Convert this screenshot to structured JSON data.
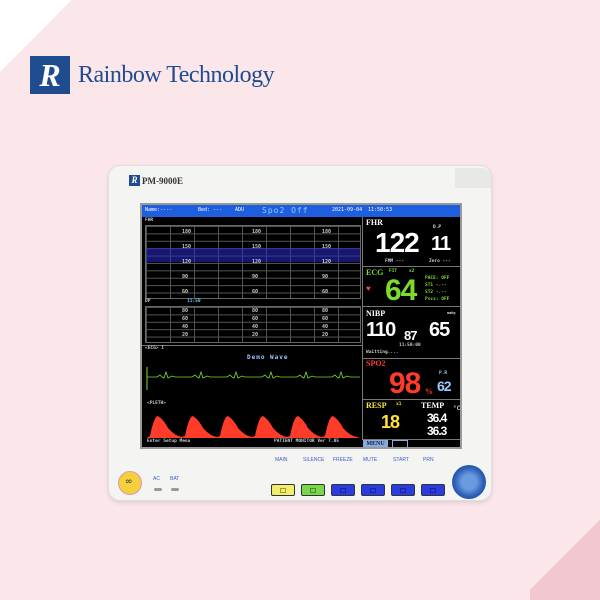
{
  "brand": {
    "logo_letter": "R",
    "name": "Rainbow Technology"
  },
  "device": {
    "model": "PM-9000E"
  },
  "screen": {
    "header": {
      "name": "Name:----",
      "bed": "Bed: ---",
      "mode": "ADU",
      "alert": "Spo2 Off",
      "date": "2021-09-04",
      "time": "11:50:53"
    },
    "fhr_grid": {
      "label": "FHR",
      "ticks": [
        "180",
        "150",
        "120",
        "90",
        "60"
      ]
    },
    "dp_grid": {
      "label": "DP",
      "time": "11:50",
      "ticks": [
        "80",
        "60",
        "40",
        "20"
      ]
    },
    "ecg_wave": {
      "label": "<ECG> I",
      "demo": "Demo Wave"
    },
    "pleth_wave": {
      "label": "<PLETH>"
    },
    "footer": {
      "left": "Enter  Setup Menu",
      "right": "PATIENT MONITOR  Ver 7.05"
    },
    "fhr": {
      "label": "FHR",
      "value": "122",
      "sub_label": "D.P",
      "sub_value": "11",
      "fmm": "FMM ---",
      "zero": "Zero ---"
    },
    "ecg": {
      "label": "ECG",
      "fit": "FIT",
      "lead": "x2",
      "value": "64",
      "pace": "PACE: OFF",
      "st1": "ST1  -.--",
      "st2": "ST2  -.--",
      "pvcs": "Pvcs: OFF"
    },
    "nibp": {
      "label": "NIBP",
      "sys": "110",
      "map": "87",
      "dia": "65",
      "unit": "mmHg",
      "time": "11:50:00",
      "status": "Waitting...."
    },
    "spo2": {
      "label": "SPO2",
      "value": "98",
      "unit": "%",
      "pr_label": "P.R",
      "pr": "62"
    },
    "resp": {
      "label": "RESP",
      "lead": "x1",
      "value": "18"
    },
    "temp": {
      "label": "TEMP",
      "unit": "°C",
      "t1": "36.4",
      "t2": "36.3"
    },
    "menu": "MENU"
  },
  "panel": {
    "keys": [
      "MAIN",
      "SILENCE",
      "FREEZE",
      "MUTE",
      "START",
      "PRN"
    ],
    "ac": "AC",
    "bat": "BAT",
    "power_icon": "∞"
  },
  "colors": {
    "fhr": "#ffffff",
    "ecg": "#7cdc2c",
    "spo2": "#ff3b2a",
    "resp": "#ffe23a",
    "header": "#1e5fe0"
  }
}
